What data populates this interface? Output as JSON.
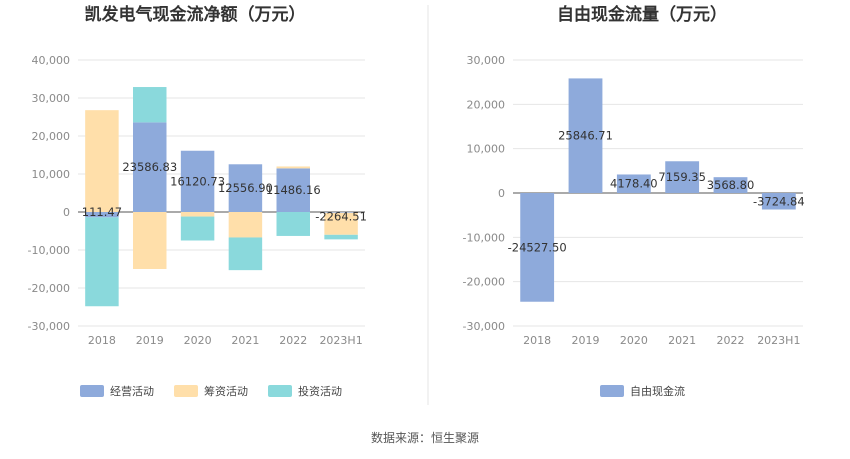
{
  "source": "数据来源：恒生聚源",
  "chart_data": [
    {
      "type": "bar",
      "stacked": true,
      "title": "凯发电气现金流净额（万元）",
      "categories": [
        "2018",
        "2019",
        "2020",
        "2021",
        "2022",
        "2023H1"
      ],
      "yticks": [
        "40,000",
        "30,000",
        "20,000",
        "10,000",
        "0",
        "-10,000",
        "-20,000",
        "-30,000"
      ],
      "ylim": [
        -30000,
        40000
      ],
      "grid": true,
      "legend_position": "bottom-left",
      "series": [
        {
          "name": "经营活动",
          "color": "#8eaadb",
          "values": [
            -1400,
            23586.83,
            16120.73,
            12556.9,
            11486.16,
            -200
          ]
        },
        {
          "name": "筹资活动",
          "color": "#ffdfaa",
          "values": [
            26800,
            -15000,
            -1200,
            -6700,
            500,
            -5800
          ]
        },
        {
          "name": "投资活动",
          "color": "#8ad9dc",
          "values": [
            -23400,
            9300,
            -6300,
            -8600,
            -6300,
            -1200
          ]
        }
      ],
      "net_labels": [
        "111.47",
        "23586.83",
        "16120.73",
        "12556.90",
        "11486.16",
        "-2264.51"
      ],
      "net_values": [
        111.47,
        23586.83,
        16120.73,
        12556.9,
        11486.16,
        -2264.51
      ]
    },
    {
      "type": "bar",
      "title": "自由现金流量（万元）",
      "categories": [
        "2018",
        "2019",
        "2020",
        "2021",
        "2022",
        "2023H1"
      ],
      "yticks": [
        "30,000",
        "20,000",
        "10,000",
        "0",
        "-10,000",
        "-20,000",
        "-30,000"
      ],
      "ylim": [
        -30000,
        30000
      ],
      "grid": true,
      "legend_position": "bottom",
      "series": [
        {
          "name": "自由现金流",
          "color": "#8eaadb",
          "values": [
            -24527.5,
            25846.71,
            4178.4,
            7159.35,
            3568.8,
            -3724.84
          ]
        }
      ],
      "value_labels": [
        "-24527.50",
        "25846.71",
        "4178.40",
        "7159.35",
        "3568.80",
        "-3724.84"
      ]
    }
  ]
}
